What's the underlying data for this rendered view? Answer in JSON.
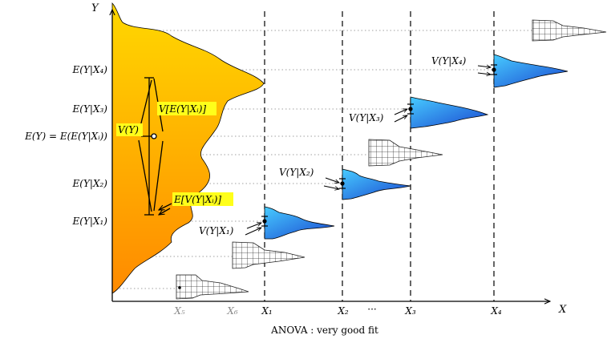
{
  "axes": {
    "y_label": "Y",
    "x_label": "X"
  },
  "y_ticks": [
    "E(Y|X₄)",
    "E(Y|X₃)",
    "E(Y) = E(E(Y|Xᵢ))",
    "E(Y|X₂)",
    "E(Y|X₁)"
  ],
  "x_ticks": [
    "X₅",
    "X₆",
    "X₁",
    "X₂",
    "···",
    "X₃",
    "X₄"
  ],
  "annotations": {
    "total_variance": "V(Y)",
    "variance_of_means": "V[E(Y|Xᵢ)]",
    "mean_of_variances": "E[V(Y|Xᵢ)]",
    "cond_var_1": "V(Y|X₁)",
    "cond_var_2": "V(Y|X₂)",
    "cond_var_3": "V(Y|X₃)",
    "cond_var_4": "V(Y|X₄)"
  },
  "caption": "ANOVA : very good fit",
  "colors": {
    "marginal_top": "#ffd400",
    "marginal_bottom": "#ff8c00",
    "conditional_light": "#3fc4ff",
    "conditional_dark": "#1c4fd6",
    "label_highlight": "#ffff1a",
    "guide": "#999999"
  }
}
